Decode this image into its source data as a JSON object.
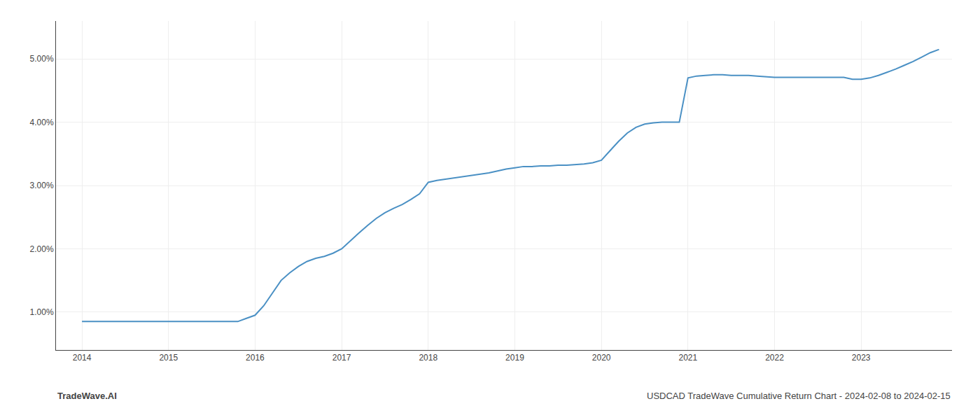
{
  "chart_data": {
    "type": "line",
    "title": "USDCAD TradeWave Cumulative Return Chart - 2024-02-08 to 2024-02-15",
    "annotations": [
      "TradeWave.AI"
    ],
    "color": "#4A90C4",
    "grid": true,
    "x": [
      2014.0,
      2014.1,
      2014.2,
      2014.3,
      2014.4,
      2014.5,
      2014.6,
      2014.7,
      2014.8,
      2014.9,
      2015.0,
      2015.1,
      2015.2,
      2015.3,
      2015.4,
      2015.5,
      2015.6,
      2015.7,
      2015.8,
      2015.9,
      2016.0,
      2016.1,
      2016.2,
      2016.3,
      2016.4,
      2016.5,
      2016.6,
      2016.7,
      2016.8,
      2016.9,
      2017.0,
      2017.1,
      2017.2,
      2017.3,
      2017.4,
      2017.5,
      2017.6,
      2017.7,
      2017.8,
      2017.9,
      2018.0,
      2018.1,
      2018.2,
      2018.3,
      2018.4,
      2018.5,
      2018.6,
      2018.7,
      2018.8,
      2018.9,
      2019.0,
      2019.1,
      2019.2,
      2019.3,
      2019.4,
      2019.5,
      2019.6,
      2019.7,
      2019.8,
      2019.9,
      2020.0,
      2020.1,
      2020.2,
      2020.3,
      2020.4,
      2020.5,
      2020.6,
      2020.7,
      2020.8,
      2020.9,
      2021.0,
      2021.1,
      2021.2,
      2021.3,
      2021.4,
      2021.5,
      2021.6,
      2021.7,
      2021.8,
      2021.9,
      2022.0,
      2022.1,
      2022.2,
      2022.3,
      2022.4,
      2022.5,
      2022.6,
      2022.7,
      2022.8,
      2022.9,
      2023.0,
      2023.1,
      2023.2,
      2023.3,
      2023.4,
      2023.5,
      2023.6,
      2023.7,
      2023.8,
      2023.9
    ],
    "values": [
      0.0085,
      0.0085,
      0.0085,
      0.0085,
      0.0085,
      0.0085,
      0.0085,
      0.0085,
      0.0085,
      0.0085,
      0.0085,
      0.0085,
      0.0085,
      0.0085,
      0.0085,
      0.0085,
      0.0085,
      0.0085,
      0.0085,
      0.009,
      0.0095,
      0.011,
      0.013,
      0.015,
      0.0162,
      0.0172,
      0.018,
      0.0185,
      0.0188,
      0.0193,
      0.02,
      0.0213,
      0.0225,
      0.0237,
      0.0248,
      0.0257,
      0.0264,
      0.027,
      0.0278,
      0.0287,
      0.0305,
      0.0308,
      0.031,
      0.0312,
      0.0314,
      0.0316,
      0.0318,
      0.032,
      0.0323,
      0.0326,
      0.0328,
      0.033,
      0.033,
      0.0331,
      0.0331,
      0.0332,
      0.0332,
      0.0333,
      0.0334,
      0.0336,
      0.034,
      0.0355,
      0.037,
      0.0383,
      0.0392,
      0.0397,
      0.0399,
      0.04,
      0.04,
      0.04,
      0.047,
      0.0473,
      0.0474,
      0.0475,
      0.0475,
      0.0474,
      0.0474,
      0.0474,
      0.0473,
      0.0472,
      0.0471,
      0.0471,
      0.0471,
      0.0471,
      0.0471,
      0.0471,
      0.0471,
      0.0471,
      0.0471,
      0.0468,
      0.0468,
      0.047,
      0.0474,
      0.0479,
      0.0484,
      0.049,
      0.0496,
      0.0503,
      0.051,
      0.0515
    ],
    "xlim": [
      2013.7,
      2024.05
    ],
    "xticks": [
      2014,
      2015,
      2016,
      2017,
      2018,
      2019,
      2020,
      2021,
      2022,
      2023
    ],
    "ylim": [
      0.004,
      0.056
    ],
    "yticks": [
      {
        "value": 0.01,
        "label": "1.00%"
      },
      {
        "value": 0.02,
        "label": "2.00%"
      },
      {
        "value": 0.03,
        "label": "3.00%"
      },
      {
        "value": 0.04,
        "label": "4.00%"
      },
      {
        "value": 0.05,
        "label": "5.00%"
      }
    ]
  }
}
